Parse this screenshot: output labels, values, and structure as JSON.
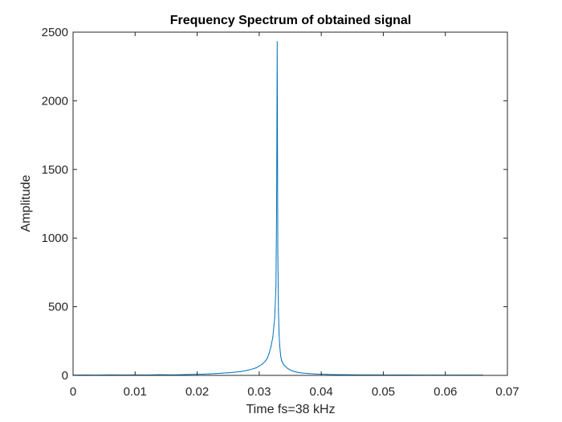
{
  "chart_data": {
    "type": "line",
    "title": "Frequency Spectrum of obtained signal",
    "xlabel": "Time fs=38 kHz",
    "ylabel": "Amplitude",
    "xlim": [
      0,
      0.07
    ],
    "ylim": [
      0,
      2500
    ],
    "xticks": [
      0,
      0.01,
      0.02,
      0.03,
      0.04,
      0.05,
      0.06,
      0.07
    ],
    "xtick_labels": [
      "0",
      "0.01",
      "0.02",
      "0.03",
      "0.04",
      "0.05",
      "0.06",
      "0.07"
    ],
    "yticks": [
      0,
      500,
      1000,
      1500,
      2000,
      2500
    ],
    "ytick_labels": [
      "0",
      "500",
      "1000",
      "1500",
      "2000",
      "2500"
    ],
    "grid": false,
    "series": [
      {
        "color": "#0072bd",
        "x": [
          0,
          0.002,
          0.004,
          0.006,
          0.008,
          0.01,
          0.012,
          0.014,
          0.016,
          0.018,
          0.02,
          0.021,
          0.022,
          0.023,
          0.024,
          0.025,
          0.026,
          0.027,
          0.028,
          0.029,
          0.0295,
          0.03,
          0.0305,
          0.031,
          0.0313,
          0.0316,
          0.0319,
          0.0322,
          0.0325,
          0.0327,
          0.0328,
          0.0329,
          0.033,
          0.0331,
          0.0332,
          0.0333,
          0.0334,
          0.0335,
          0.0336,
          0.0338,
          0.034,
          0.0343,
          0.0346,
          0.0349,
          0.0352,
          0.0355,
          0.036,
          0.0365,
          0.037,
          0.038,
          0.039,
          0.04,
          0.041,
          0.042,
          0.043,
          0.044,
          0.046,
          0.048,
          0.05,
          0.052,
          0.054,
          0.056,
          0.058,
          0.06,
          0.062,
          0.064,
          0.066
        ],
        "y": [
          2,
          3,
          2,
          4,
          3,
          4,
          3,
          5,
          4,
          6,
          8,
          9,
          11,
          13,
          16,
          19,
          23,
          28,
          36,
          48,
          55,
          68,
          82,
          105,
          125,
          160,
          210,
          280,
          420,
          650,
          1200,
          2430,
          900,
          480,
          300,
          220,
          170,
          130,
          110,
          90,
          75,
          62,
          50,
          42,
          36,
          30,
          24,
          20,
          17,
          13,
          10,
          9,
          7,
          6,
          5,
          5,
          4,
          4,
          3,
          3,
          3,
          2,
          2,
          2,
          2,
          2,
          2
        ]
      },
      {
        "color": "#d95319",
        "x": [
          0,
          0.066
        ],
        "y": [
          0,
          0
        ]
      }
    ]
  }
}
